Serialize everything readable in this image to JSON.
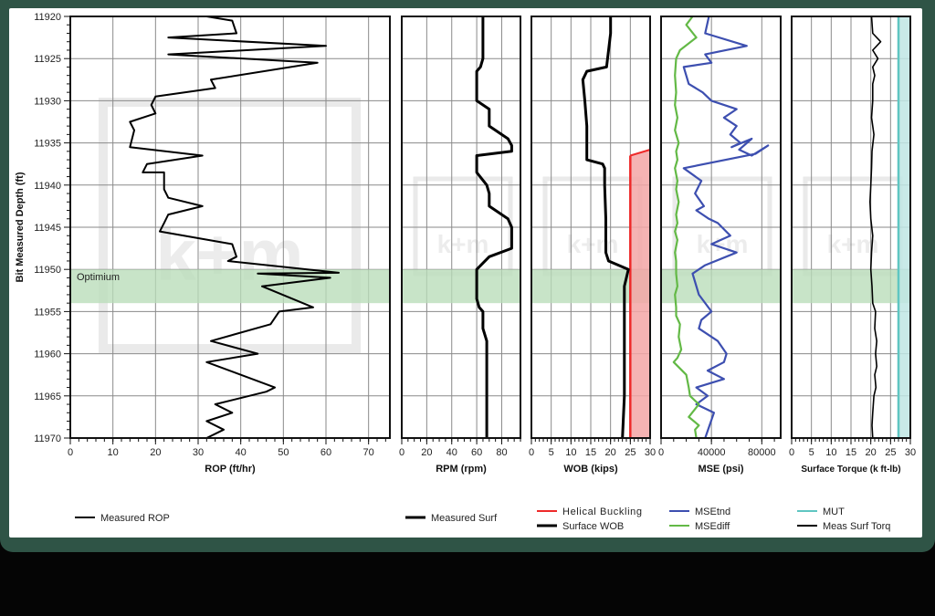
{
  "figure": {
    "frame_color": "#2f5446",
    "optimum_band": {
      "label": "Optimium",
      "from": 11950,
      "to": 11954,
      "color": "#b9dcb9"
    },
    "watermark": "k+m",
    "y_axis": {
      "label": "Bit Measured Depth (ft)",
      "ticks": [
        "11920",
        "11925",
        "11930",
        "11935",
        "11940",
        "11945",
        "11950",
        "11955",
        "11960",
        "11965",
        "11970"
      ]
    },
    "caption": {
      "line1": "",
      "line2": ""
    }
  },
  "chart_data": [
    {
      "type": "line",
      "title": "",
      "xlabel": "ROP (ft/hr)",
      "ylabel": "Bit Measured Depth (ft)",
      "xlim": [
        0,
        75
      ],
      "ylim": [
        11970,
        11920
      ],
      "x_ticks": [
        "0",
        "10",
        "20",
        "30",
        "40",
        "50",
        "60",
        "70"
      ],
      "grid": true,
      "legend": [
        {
          "name": "Measured ROP",
          "color": "#000000"
        }
      ],
      "series": [
        {
          "name": "Measured ROP",
          "color": "#000000",
          "x": [
            32,
            38,
            39,
            23,
            60,
            23,
            58,
            33,
            34,
            20,
            19,
            20,
            14,
            15,
            14,
            31,
            18,
            17,
            22,
            22,
            23,
            31,
            23,
            22,
            21,
            38,
            39,
            37,
            63,
            44,
            61,
            45,
            57,
            49,
            47,
            33,
            44,
            32,
            48,
            46,
            34,
            38,
            32,
            36,
            32
          ],
          "y": [
            11920,
            11920.5,
            11922,
            11922.5,
            11923.5,
            11924.5,
            11925.5,
            11927.5,
            11928.5,
            11929.5,
            11930.5,
            11931.5,
            11932.5,
            11933.5,
            11935.5,
            11936.5,
            11937.5,
            11938.5,
            11938.5,
            11940.5,
            11941.5,
            11942.5,
            11943.5,
            11944.5,
            11945.5,
            11947,
            11948.5,
            11949,
            11950.4,
            11950.5,
            11951,
            11952,
            11954.5,
            11955,
            11956.5,
            11958.5,
            11960,
            11961,
            11964,
            11964.5,
            11966,
            11967,
            11968,
            11969,
            11970
          ]
        }
      ]
    },
    {
      "type": "line",
      "xlabel": "RPM (rpm)",
      "xlim": [
        0,
        95
      ],
      "ylim": [
        11970,
        11920
      ],
      "x_ticks": [
        "0",
        "20",
        "40",
        "60",
        "80"
      ],
      "grid": true,
      "legend": [
        {
          "name": "Measured Surf",
          "color": "#000000"
        }
      ],
      "series": [
        {
          "name": "Measured Surf",
          "color": "#000000",
          "x": [
            65,
            65,
            63,
            60,
            60,
            60,
            70,
            70,
            85,
            88,
            88,
            60,
            60,
            68,
            70,
            70,
            85,
            88,
            88,
            70,
            60,
            60,
            62,
            65,
            65,
            68,
            68,
            68
          ],
          "y": [
            11920,
            11925,
            11926,
            11926.5,
            11929,
            11930,
            11931,
            11933,
            11934.5,
            11935.3,
            11936,
            11936.5,
            11938.5,
            11940,
            11941,
            11942.5,
            11944,
            11945,
            11947.5,
            11948.5,
            11950,
            11953.5,
            11954.5,
            11955,
            11957,
            11958.5,
            11960,
            11970
          ]
        }
      ]
    },
    {
      "type": "area",
      "xlabel": "WOB (kips)",
      "xlim": [
        0,
        30
      ],
      "ylim": [
        11970,
        11920
      ],
      "x_ticks": [
        "0",
        "5",
        "10",
        "15",
        "20",
        "25",
        "30"
      ],
      "grid": true,
      "legend": [
        {
          "name": "Helical Buckling",
          "color": "#ee2a2a"
        },
        {
          "name": "Surface WOB",
          "color": "#000000"
        }
      ],
      "series": [
        {
          "name": "Helical Buckling",
          "color": "#ee2a2a",
          "fill": "#f3a6a6",
          "x": [
            25,
            30,
            30,
            25
          ],
          "y": [
            11936.5,
            11935.8,
            11970,
            11970
          ]
        },
        {
          "name": "Surface WOB",
          "color": "#000000",
          "x": [
            20,
            20,
            19.5,
            19,
            14,
            13,
            13.5,
            14,
            14,
            14,
            14,
            14,
            18,
            18.5,
            18.5,
            18.8,
            18.8,
            18.8,
            19.5,
            24.5,
            23.5,
            23.5,
            23.5,
            23.5,
            23
          ],
          "y": [
            11920,
            11922,
            11924,
            11926,
            11926.5,
            11927.5,
            11930,
            11933,
            11935,
            11936,
            11936.5,
            11937,
            11937.5,
            11938,
            11940,
            11944,
            11946,
            11948,
            11949,
            11950,
            11952,
            11955,
            11960,
            11965,
            11970
          ]
        }
      ]
    },
    {
      "type": "line",
      "xlabel": "MSE (psi)",
      "xlim": [
        0,
        95000
      ],
      "ylim": [
        11970,
        11920
      ],
      "x_ticks": [
        "0",
        "40000",
        "80000"
      ],
      "grid": true,
      "legend": [
        {
          "name": "MSEtnd",
          "color": "#3d4fb0"
        },
        {
          "name": "MSEdiff",
          "color": "#63b946"
        }
      ],
      "series": [
        {
          "name": "MSEtnd",
          "color": "#3d4fb0",
          "x": [
            38000,
            35000,
            68000,
            35000,
            40000,
            18000,
            22000,
            33000,
            40000,
            60000,
            50000,
            60000,
            55000,
            63000,
            56000,
            72000,
            62000,
            72000,
            85000,
            75000,
            18000,
            32000,
            27000,
            34000,
            28000,
            38000,
            45000,
            55000,
            40000,
            60000,
            35000,
            25000,
            30000,
            40000,
            32000,
            30000,
            45000,
            52000,
            50000,
            37000,
            50000,
            28000,
            37000,
            28000,
            42000,
            35000
          ],
          "y": [
            11920,
            11922,
            11923.5,
            11924.5,
            11925.5,
            11926,
            11928,
            11929,
            11930,
            11931,
            11932,
            11933,
            11934,
            11935,
            11935.5,
            11934.5,
            11935.8,
            11936.5,
            11935.3,
            11936.3,
            11938,
            11939.5,
            11941,
            11942.5,
            11943,
            11944,
            11944.5,
            11946,
            11947,
            11948,
            11949.5,
            11950.5,
            11953,
            11955,
            11956,
            11957,
            11958.5,
            11960,
            11961,
            11962,
            11963,
            11964,
            11965,
            11966,
            11967,
            11970
          ]
        },
        {
          "name": "MSEdiff",
          "color": "#63b946",
          "x": [
            25000,
            20000,
            28000,
            15000,
            12000,
            11000,
            12000,
            11000,
            13000,
            11000,
            14000,
            12000,
            13000,
            11000,
            13000,
            12000,
            14000,
            12000,
            13000,
            11000,
            13000,
            11000,
            12000,
            12000,
            13000,
            11000,
            12000,
            12000,
            15000,
            14000,
            16000,
            13000,
            10000,
            20000,
            22000,
            23000,
            30000,
            22000,
            30000,
            27000,
            28000
          ],
          "y": [
            11920,
            11921,
            11922.5,
            11924,
            11925,
            11927,
            11929,
            11930.5,
            11932,
            11933.5,
            11935,
            11936,
            11937,
            11938,
            11939.5,
            11940.5,
            11942,
            11943.5,
            11944.5,
            11945.5,
            11946.5,
            11948,
            11949,
            11950.5,
            11952,
            11953,
            11954.5,
            11955.5,
            11956.5,
            11958,
            11959.5,
            11960.5,
            11961,
            11962.5,
            11964,
            11965,
            11966,
            11967.5,
            11968.5,
            11969,
            11970
          ]
        }
      ]
    },
    {
      "type": "line",
      "xlabel": "Surface Torque (k ft-lb)",
      "xlim": [
        0,
        30
      ],
      "ylim": [
        11970,
        11920
      ],
      "x_ticks": [
        "0",
        "5",
        "10",
        "15",
        "20",
        "25",
        "30"
      ],
      "grid": true,
      "legend": [
        {
          "name": "MUT",
          "color": "#5fc6c2"
        },
        {
          "name": "Meas Surf Torq",
          "color": "#000000"
        }
      ],
      "series": [
        {
          "name": "MUT",
          "color": "#5fc6c2",
          "fill": "#bfe6e4",
          "x": [
            27,
            30,
            30,
            27
          ],
          "y": [
            11920,
            11920,
            11970,
            11970
          ]
        },
        {
          "name": "Meas Surf Torq",
          "color": "#000000",
          "x": [
            20.2,
            20.5,
            22.5,
            20.5,
            21.8,
            20.5,
            21,
            20.5,
            20.5,
            20.2,
            20.8,
            20.3,
            20.2,
            20,
            19.8,
            20,
            20.5,
            20.2,
            20,
            20.3,
            20.5,
            21.2,
            21,
            21.5,
            21.2,
            21.5,
            21,
            21.3,
            20.8,
            20.5,
            20.3,
            20.5
          ],
          "y": [
            11920,
            11922,
            11923,
            11924,
            11925,
            11926,
            11927,
            11928,
            11930,
            11932,
            11934,
            11936,
            11938,
            11940,
            11942,
            11944,
            11946,
            11948,
            11950,
            11952,
            11954,
            11955,
            11957,
            11958.5,
            11960,
            11961.5,
            11962.5,
            11964,
            11965,
            11967,
            11968.5,
            11970
          ]
        }
      ]
    }
  ]
}
